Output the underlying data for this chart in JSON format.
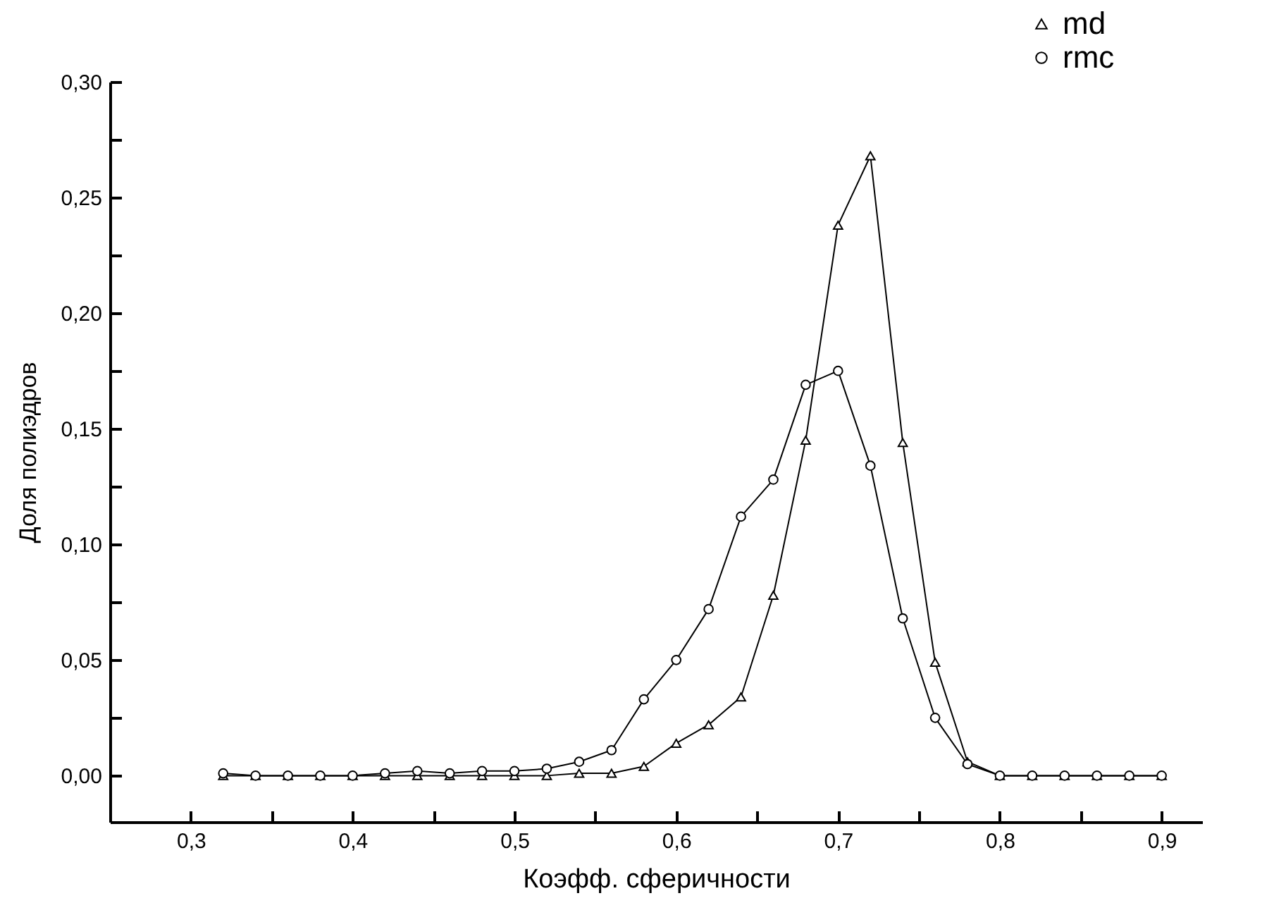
{
  "chart_data": {
    "type": "line",
    "xlabel": "Коэфф. сферичности",
    "ylabel": "Доля полиэдров",
    "x": [
      0.32,
      0.34,
      0.36,
      0.38,
      0.4,
      0.42,
      0.44,
      0.46,
      0.48,
      0.5,
      0.52,
      0.54,
      0.56,
      0.58,
      0.6,
      0.62,
      0.64,
      0.66,
      0.68,
      0.7,
      0.72,
      0.74,
      0.76,
      0.78,
      0.8,
      0.82,
      0.84,
      0.86,
      0.88,
      0.9
    ],
    "series": [
      {
        "name": "md",
        "color": "#000000",
        "marker": "triangle",
        "values": [
          0,
          0,
          0,
          0,
          0,
          0,
          0,
          0,
          0,
          0,
          0,
          0.001,
          0.001,
          0.004,
          0.014,
          0.022,
          0.034,
          0.078,
          0.145,
          0.238,
          0.268,
          0.144,
          0.049,
          0.006,
          0,
          0,
          0,
          0,
          0,
          0
        ]
      },
      {
        "name": "rmc",
        "color": "#000000",
        "marker": "circle",
        "values": [
          0.001,
          0,
          0,
          0,
          0,
          0.001,
          0.002,
          0.001,
          0.002,
          0.002,
          0.003,
          0.006,
          0.011,
          0.033,
          0.05,
          0.072,
          0.112,
          0.128,
          0.169,
          0.175,
          0.134,
          0.068,
          0.025,
          0.005,
          0,
          0,
          0,
          0,
          0,
          0
        ]
      }
    ],
    "xlim": [
      0.25,
      0.925
    ],
    "xticks": [
      {
        "value": 0.3,
        "label": "0,3"
      },
      {
        "value": 0.35,
        "label": null
      },
      {
        "value": 0.4,
        "label": "0,4"
      },
      {
        "value": 0.45,
        "label": null
      },
      {
        "value": 0.5,
        "label": "0,5"
      },
      {
        "value": 0.55,
        "label": null
      },
      {
        "value": 0.6,
        "label": "0,6"
      },
      {
        "value": 0.65,
        "label": null
      },
      {
        "value": 0.7,
        "label": "0,7"
      },
      {
        "value": 0.75,
        "label": null
      },
      {
        "value": 0.8,
        "label": "0,8"
      },
      {
        "value": 0.85,
        "label": null
      },
      {
        "value": 0.9,
        "label": "0,9"
      }
    ],
    "ylim": [
      -0.02,
      0.3
    ],
    "yticks": [
      {
        "value": 0,
        "label": "0,00"
      },
      {
        "value": 0.025,
        "label": null
      },
      {
        "value": 0.05,
        "label": "0,05"
      },
      {
        "value": 0.075,
        "label": null
      },
      {
        "value": 0.1,
        "label": "0,10"
      },
      {
        "value": 0.125,
        "label": null
      },
      {
        "value": 0.15,
        "label": "0,15"
      },
      {
        "value": 0.175,
        "label": null
      },
      {
        "value": 0.2,
        "label": "0,20"
      },
      {
        "value": 0.225,
        "label": null
      },
      {
        "value": 0.25,
        "label": "0,25"
      },
      {
        "value": 0.275,
        "label": null
      },
      {
        "value": 0.3,
        "label": "0,30"
      }
    ],
    "grid": false,
    "legend": "top right",
    "line_style": "solid"
  }
}
